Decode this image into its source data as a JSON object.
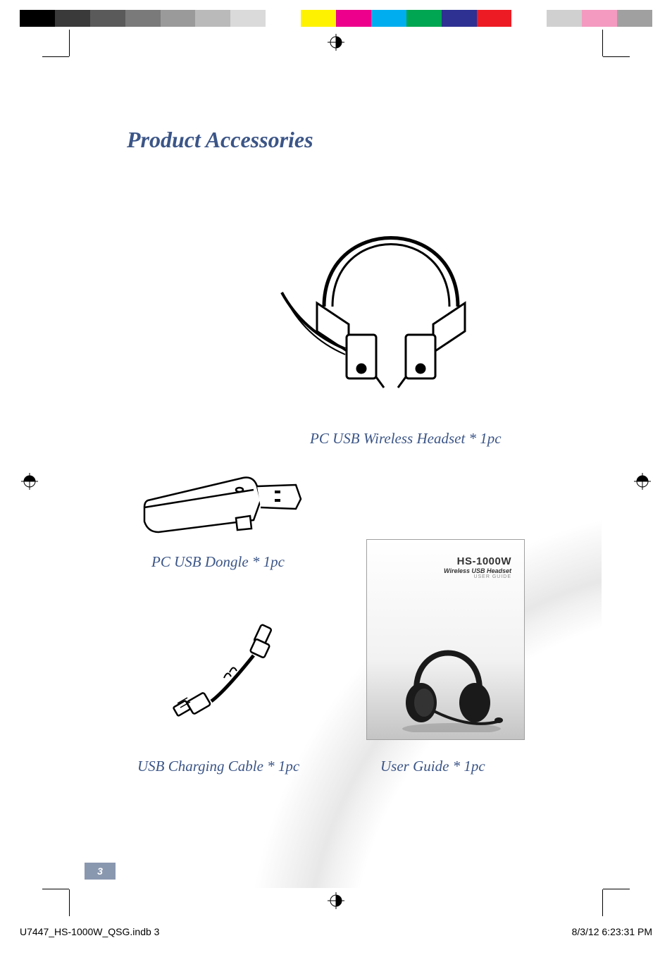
{
  "document": {
    "title": "Product Accessories",
    "title_color": "#3b5587",
    "title_fontsize": 32,
    "page_number": "3",
    "page_background": "#ffffff"
  },
  "accessories": {
    "headset": {
      "caption": "PC USB Wireless Headset * 1pc"
    },
    "dongle": {
      "caption": "PC USB Dongle * 1pc"
    },
    "cable": {
      "caption": "USB Charging Cable * 1pc"
    },
    "guide": {
      "caption": "User Guide * 1pc",
      "cover_model": "HS-1000W",
      "cover_subtitle": "Wireless USB Headset",
      "cover_label": "USER GUIDE"
    }
  },
  "caption_style": {
    "color": "#3b5587",
    "fontsize": 21,
    "fontstyle": "italic"
  },
  "print_marks": {
    "color_bar": [
      "#000000",
      "#3a3a3a",
      "#5a5a5a",
      "#7a7a7a",
      "#9a9a9a",
      "#bababa",
      "#dadada",
      "#ffffff",
      "#fff200",
      "#ec008c",
      "#00aeef",
      "#00a651",
      "#2e3192",
      "#ed1c24",
      "#ffffff",
      "#d0d0d0",
      "#f49ac1",
      "#a0a0a0"
    ],
    "filename": "U7447_HS-1000W_QSG.indb   3",
    "timestamp": "8/3/12   6:23:31 PM",
    "footer_fontsize": 14
  }
}
